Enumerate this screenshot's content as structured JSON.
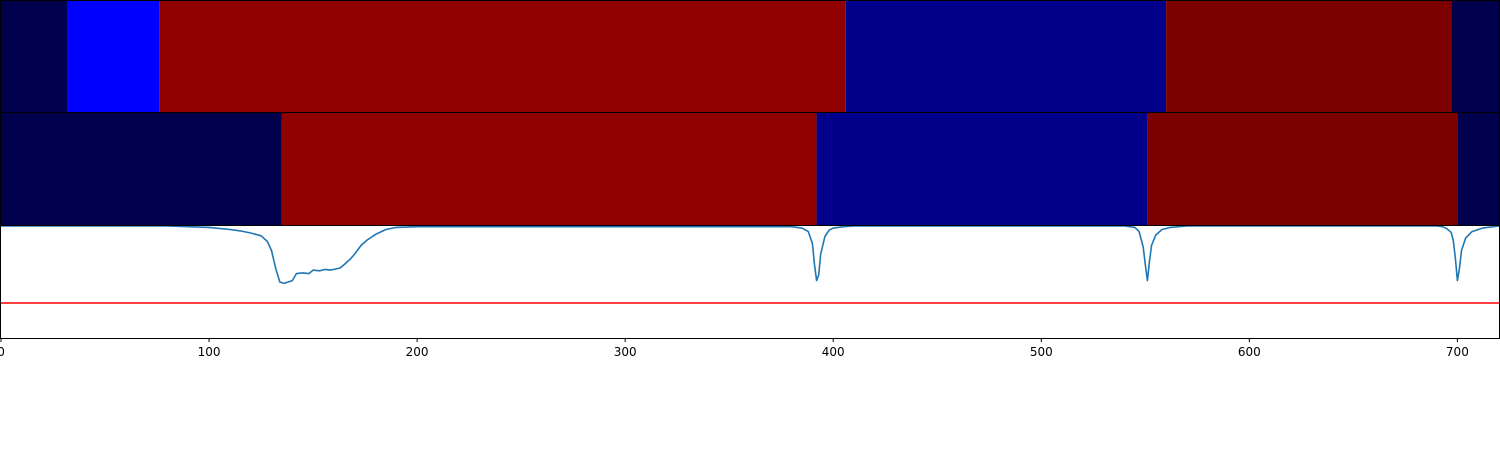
{
  "chart_data": {
    "type": "heatmap",
    "title": "",
    "xlabel": "",
    "ylabel": "",
    "xlim": [
      0,
      720
    ],
    "x_ticks": [
      0,
      100,
      200,
      300,
      400,
      500,
      600,
      700
    ],
    "x_tick_labels": [
      "0",
      "100",
      "200",
      "300",
      "400",
      "500",
      "600",
      "700"
    ],
    "grid": false,
    "rows": [
      {
        "segments": [
          {
            "start": 0,
            "end": 32,
            "color": "#00004c"
          },
          {
            "start": 32,
            "end": 76,
            "color": "#0000ff"
          },
          {
            "start": 76,
            "end": 406,
            "color": "#900000"
          },
          {
            "start": 406,
            "end": 560,
            "color": "#00008a"
          },
          {
            "start": 560,
            "end": 697,
            "color": "#7c0000"
          },
          {
            "start": 697,
            "end": 720,
            "color": "#00004c"
          }
        ]
      },
      {
        "segments": [
          {
            "start": 0,
            "end": 135,
            "color": "#00004c"
          },
          {
            "start": 135,
            "end": 392,
            "color": "#900000"
          },
          {
            "start": 392,
            "end": 551,
            "color": "#00008a"
          },
          {
            "start": 551,
            "end": 700,
            "color": "#7c0000"
          },
          {
            "start": 700,
            "end": 720,
            "color": "#00004c"
          }
        ]
      }
    ],
    "line_panel": {
      "ylim": [
        -1.6,
        0.0
      ],
      "threshold": {
        "value": -1.1,
        "color": "#ff0000"
      },
      "series_color": "#1f77b4",
      "x": [
        0,
        80,
        90,
        100,
        110,
        115,
        120,
        125,
        128,
        130,
        132,
        134,
        136,
        138,
        140,
        142,
        145,
        148,
        150,
        153,
        156,
        158,
        160,
        163,
        165,
        168,
        170,
        173,
        176,
        180,
        185,
        190,
        200,
        300,
        380,
        385,
        388,
        390,
        391,
        392,
        393,
        394,
        396,
        398,
        400,
        405,
        410,
        420,
        500,
        540,
        545,
        547,
        549,
        550,
        551,
        552,
        553,
        555,
        558,
        562,
        570,
        690,
        693,
        695,
        697,
        698,
        699,
        700,
        701,
        702,
        704,
        707,
        712,
        720
      ],
      "y": [
        0.0,
        0.0,
        -0.01,
        -0.02,
        -0.05,
        -0.07,
        -0.1,
        -0.14,
        -0.22,
        -0.35,
        -0.6,
        -0.8,
        -0.82,
        -0.8,
        -0.78,
        -0.68,
        -0.67,
        -0.68,
        -0.63,
        -0.64,
        -0.62,
        -0.63,
        -0.62,
        -0.6,
        -0.55,
        -0.47,
        -0.4,
        -0.28,
        -0.2,
        -0.12,
        -0.05,
        -0.02,
        -0.01,
        -0.01,
        -0.01,
        -0.03,
        -0.08,
        -0.25,
        -0.55,
        -0.78,
        -0.7,
        -0.4,
        -0.15,
        -0.06,
        -0.03,
        -0.01,
        0.0,
        0.0,
        0.0,
        0.0,
        -0.02,
        -0.08,
        -0.3,
        -0.55,
        -0.78,
        -0.5,
        -0.28,
        -0.13,
        -0.05,
        -0.02,
        0.0,
        0.0,
        -0.01,
        -0.04,
        -0.09,
        -0.2,
        -0.45,
        -0.78,
        -0.6,
        -0.35,
        -0.17,
        -0.08,
        -0.03,
        0.0
      ]
    }
  }
}
